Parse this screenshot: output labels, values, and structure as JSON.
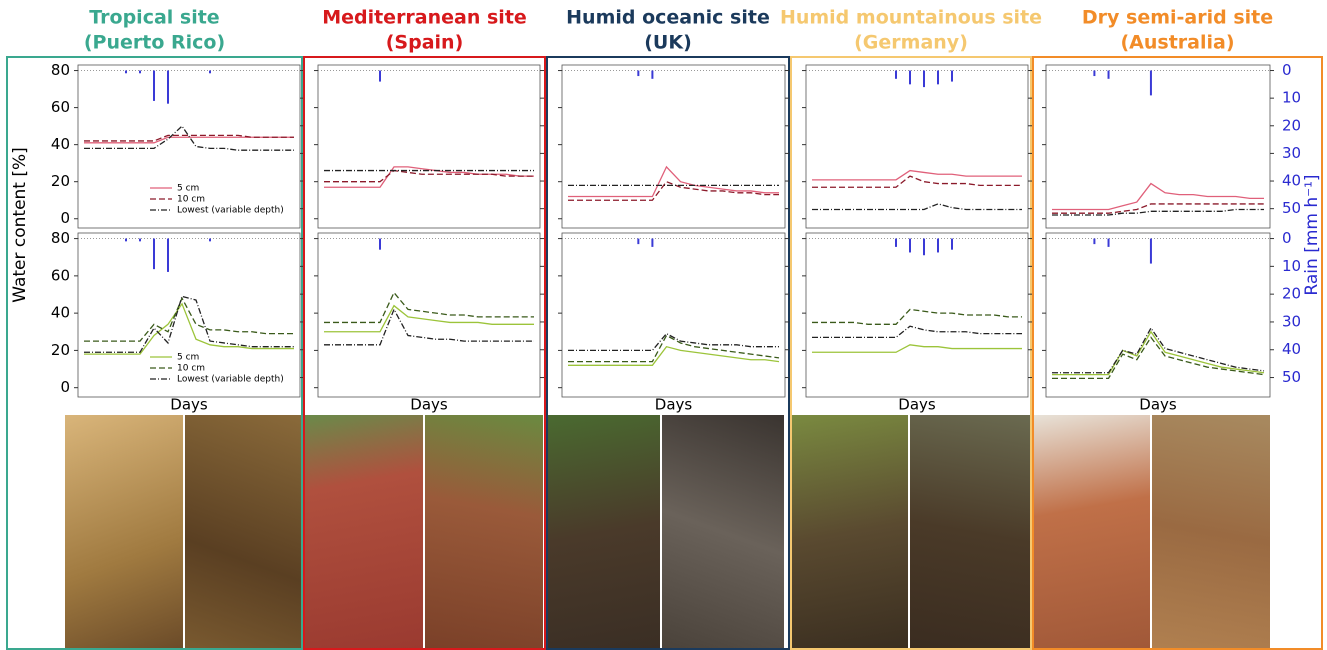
{
  "axes": {
    "ylabel": "Water content [%]",
    "y2label": "Rain [mm h⁻¹]",
    "ylim": [
      -5,
      83
    ],
    "yticks": [
      0,
      20,
      40,
      60,
      80
    ],
    "y2lim": [
      57,
      -2
    ],
    "y2ticks": [
      0,
      10,
      20,
      30,
      40,
      50
    ],
    "rain_color": "#3a3ad6"
  },
  "chart_data": [
    {
      "type": "line",
      "title": "Tropical site",
      "subtitle": "(Puerto Rico)",
      "title_color": "#3aa88f",
      "xlabel": "Days",
      "panels": [
        {
          "legend": "bottom",
          "rain": [
            0,
            0,
            0,
            1,
            1,
            11,
            12,
            0,
            0,
            1,
            0,
            0,
            0,
            0,
            0,
            0
          ],
          "series": [
            {
              "name": "5 cm",
              "color": "#e0607a",
              "dash": "solid",
              "values": [
                41,
                41,
                41,
                41,
                41,
                41,
                44,
                44,
                44,
                44,
                44,
                44,
                44,
                44,
                44,
                44
              ]
            },
            {
              "name": "10 cm",
              "color": "#8b1a2a",
              "dash": "dashed",
              "values": [
                42,
                42,
                42,
                42,
                42,
                42,
                45,
                45,
                45,
                45,
                45,
                45,
                44,
                44,
                44,
                44
              ]
            },
            {
              "name": "Lowest (variable depth)",
              "color": "#222222",
              "dash": "dashdot",
              "values": [
                38,
                38,
                38,
                38,
                38,
                38,
                43,
                50,
                39,
                38,
                38,
                37,
                37,
                37,
                37,
                37
              ]
            }
          ]
        },
        {
          "legend": "bottom",
          "rain": [
            0,
            0,
            0,
            1,
            1,
            11,
            12,
            0,
            0,
            1,
            0,
            0,
            0,
            0,
            0,
            0
          ],
          "series": [
            {
              "name": "5 cm",
              "color": "#9cc43a",
              "dash": "solid",
              "values": [
                18,
                18,
                18,
                18,
                18,
                28,
                34,
                45,
                26,
                23,
                22,
                22,
                21,
                21,
                21,
                21
              ]
            },
            {
              "name": "10 cm",
              "color": "#3a5a1a",
              "dash": "dashed",
              "values": [
                25,
                25,
                25,
                25,
                25,
                34,
                30,
                48,
                34,
                31,
                31,
                30,
                30,
                29,
                29,
                29
              ]
            },
            {
              "name": "Lowest (variable depth)",
              "color": "#222222",
              "dash": "dashdot",
              "values": [
                19,
                19,
                19,
                19,
                19,
                32,
                24,
                49,
                47,
                25,
                24,
                23,
                22,
                22,
                22,
                22
              ]
            }
          ]
        }
      ]
    },
    {
      "type": "line",
      "title": "Mediterranean site",
      "subtitle": "(Spain)",
      "title_color": "#d7191c",
      "xlabel": "Days",
      "panels": [
        {
          "rain": [
            0,
            0,
            0,
            0,
            4,
            0,
            0,
            0,
            0,
            0,
            0,
            0,
            0,
            0,
            0,
            0
          ],
          "series": [
            {
              "color": "#e0607a",
              "dash": "solid",
              "values": [
                17,
                17,
                17,
                17,
                17,
                28,
                28,
                27,
                26,
                25,
                25,
                24,
                24,
                24,
                23,
                23
              ]
            },
            {
              "color": "#8b1a2a",
              "dash": "dashed",
              "values": [
                20,
                20,
                20,
                20,
                20,
                26,
                25,
                24,
                24,
                24,
                24,
                24,
                24,
                23,
                23,
                23
              ]
            },
            {
              "color": "#222222",
              "dash": "dashdot",
              "values": [
                26,
                26,
                26,
                26,
                26,
                26,
                26,
                26,
                26,
                26,
                26,
                26,
                26,
                26,
                26,
                26
              ]
            }
          ]
        },
        {
          "rain": [
            0,
            0,
            0,
            0,
            4,
            0,
            0,
            0,
            0,
            0,
            0,
            0,
            0,
            0,
            0,
            0
          ],
          "series": [
            {
              "color": "#9cc43a",
              "dash": "solid",
              "values": [
                30,
                30,
                30,
                30,
                30,
                44,
                38,
                37,
                36,
                35,
                35,
                35,
                34,
                34,
                34,
                34
              ]
            },
            {
              "color": "#3a5a1a",
              "dash": "dashed",
              "values": [
                35,
                35,
                35,
                35,
                35,
                51,
                42,
                41,
                40,
                39,
                39,
                38,
                38,
                38,
                38,
                38
              ]
            },
            {
              "color": "#222222",
              "dash": "dashdot",
              "values": [
                23,
                23,
                23,
                23,
                23,
                42,
                28,
                27,
                26,
                26,
                25,
                25,
                25,
                25,
                25,
                25
              ]
            }
          ]
        }
      ]
    },
    {
      "type": "line",
      "title": "Humid oceanic site",
      "subtitle": "(UK)",
      "title_color": "#1b3a5c",
      "xlabel": "Days",
      "panels": [
        {
          "rain": [
            0,
            0,
            0,
            0,
            0,
            2,
            3,
            0,
            0,
            0,
            0,
            0,
            0,
            0,
            0,
            0
          ],
          "series": [
            {
              "color": "#e0607a",
              "dash": "solid",
              "values": [
                12,
                12,
                12,
                12,
                12,
                12,
                12,
                28,
                20,
                18,
                17,
                16,
                15,
                15,
                14,
                14
              ]
            },
            {
              "color": "#8b1a2a",
              "dash": "dashed",
              "values": [
                10,
                10,
                10,
                10,
                10,
                10,
                10,
                20,
                17,
                16,
                15,
                15,
                14,
                14,
                13,
                13
              ]
            },
            {
              "color": "#222222",
              "dash": "dashdot",
              "values": [
                18,
                18,
                18,
                18,
                18,
                18,
                18,
                18,
                18,
                18,
                18,
                18,
                18,
                18,
                18,
                18
              ]
            }
          ]
        },
        {
          "rain": [
            0,
            0,
            0,
            0,
            0,
            2,
            3,
            0,
            0,
            0,
            0,
            0,
            0,
            0,
            0,
            0
          ],
          "series": [
            {
              "color": "#9cc43a",
              "dash": "solid",
              "values": [
                12,
                12,
                12,
                12,
                12,
                12,
                12,
                22,
                20,
                19,
                18,
                17,
                16,
                15,
                15,
                14
              ]
            },
            {
              "color": "#3a5a1a",
              "dash": "dashed",
              "values": [
                14,
                14,
                14,
                14,
                14,
                14,
                14,
                28,
                24,
                22,
                21,
                20,
                19,
                18,
                17,
                16
              ]
            },
            {
              "color": "#222222",
              "dash": "dashdot",
              "values": [
                20,
                20,
                20,
                20,
                20,
                20,
                20,
                29,
                25,
                24,
                23,
                23,
                23,
                22,
                22,
                22
              ]
            }
          ]
        }
      ]
    },
    {
      "type": "line",
      "title": "Humid mountainous site",
      "subtitle": "(Germany)",
      "title_color": "#f5c870",
      "xlabel": "Days",
      "panels": [
        {
          "rain": [
            0,
            0,
            0,
            0,
            0,
            0,
            3,
            5,
            6,
            5,
            4,
            0,
            0,
            0,
            0,
            0
          ],
          "series": [
            {
              "color": "#e0607a",
              "dash": "solid",
              "values": [
                21,
                21,
                21,
                21,
                21,
                21,
                21,
                26,
                25,
                24,
                24,
                23,
                23,
                23,
                23,
                23
              ]
            },
            {
              "color": "#8b1a2a",
              "dash": "dashed",
              "values": [
                17,
                17,
                17,
                17,
                17,
                17,
                17,
                23,
                20,
                19,
                19,
                19,
                18,
                18,
                18,
                18
              ]
            },
            {
              "color": "#222222",
              "dash": "dashdot",
              "values": [
                5,
                5,
                5,
                5,
                5,
                5,
                5,
                5,
                5,
                8,
                6,
                5,
                5,
                5,
                5,
                5
              ]
            }
          ]
        },
        {
          "rain": [
            0,
            0,
            0,
            0,
            0,
            0,
            3,
            5,
            6,
            5,
            4,
            0,
            0,
            0,
            0,
            0
          ],
          "series": [
            {
              "color": "#9cc43a",
              "dash": "solid",
              "values": [
                19,
                19,
                19,
                19,
                19,
                19,
                19,
                23,
                22,
                22,
                21,
                21,
                21,
                21,
                21,
                21
              ]
            },
            {
              "color": "#3a5a1a",
              "dash": "dashed",
              "values": [
                35,
                35,
                35,
                35,
                34,
                34,
                34,
                42,
                41,
                40,
                40,
                39,
                39,
                39,
                38,
                38
              ]
            },
            {
              "color": "#222222",
              "dash": "dashdot",
              "values": [
                27,
                27,
                27,
                27,
                27,
                27,
                27,
                33,
                31,
                30,
                30,
                30,
                29,
                29,
                29,
                29
              ]
            }
          ]
        }
      ]
    },
    {
      "type": "line",
      "title": "Dry semi-arid site",
      "subtitle": "(Australia)",
      "title_color": "#f28c28",
      "xlabel": "Days",
      "panels": [
        {
          "rain": [
            0,
            0,
            0,
            2,
            3,
            0,
            0,
            9,
            0,
            0,
            0,
            0,
            0,
            0,
            0,
            0
          ],
          "series": [
            {
              "color": "#e0607a",
              "dash": "solid",
              "values": [
                5,
                5,
                5,
                5,
                5,
                7,
                9,
                19,
                14,
                13,
                13,
                12,
                12,
                12,
                11,
                11
              ]
            },
            {
              "color": "#8b1a2a",
              "dash": "dashed",
              "values": [
                3,
                3,
                3,
                3,
                3,
                4,
                5,
                8,
                8,
                8,
                8,
                8,
                8,
                8,
                8,
                8
              ]
            },
            {
              "color": "#222222",
              "dash": "dashdot",
              "values": [
                2,
                2,
                2,
                2,
                2,
                3,
                3,
                4,
                4,
                4,
                4,
                4,
                4,
                5,
                5,
                5
              ]
            }
          ]
        },
        {
          "rain": [
            0,
            0,
            0,
            2,
            3,
            0,
            0,
            9,
            0,
            0,
            0,
            0,
            0,
            0,
            0,
            0
          ],
          "series": [
            {
              "color": "#9cc43a",
              "dash": "solid",
              "values": [
                7,
                7,
                7,
                7,
                7,
                20,
                17,
                30,
                19,
                17,
                15,
                13,
                11,
                10,
                9,
                8
              ]
            },
            {
              "color": "#3a5a1a",
              "dash": "dashed",
              "values": [
                5,
                5,
                5,
                5,
                5,
                18,
                15,
                27,
                17,
                15,
                13,
                11,
                10,
                9,
                8,
                7
              ]
            },
            {
              "color": "#222222",
              "dash": "dashdot",
              "values": [
                8,
                8,
                8,
                8,
                8,
                20,
                18,
                32,
                21,
                19,
                17,
                15,
                13,
                11,
                10,
                9
              ]
            }
          ]
        }
      ]
    }
  ]
}
